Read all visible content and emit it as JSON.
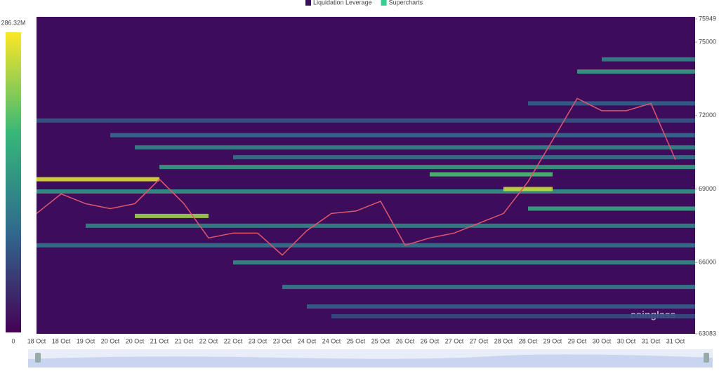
{
  "chart_data": {
    "type": "heatmap",
    "series": [
      {
        "name": "Liquidation Leverage",
        "color": "#3b0f5e"
      },
      {
        "name": "Supercharts",
        "color": "#2fcf91"
      }
    ],
    "colorbar": {
      "min": 0,
      "max": {
        "value": 286320000,
        "label": "286.32M"
      }
    },
    "watermark": "coinglass",
    "categories": [
      "18 Oct",
      "18 Oct",
      "19 Oct",
      "20 Oct",
      "20 Oct",
      "21 Oct",
      "21 Oct",
      "22 Oct",
      "22 Oct",
      "23 Oct",
      "23 Oct",
      "24 Oct",
      "24 Oct",
      "25 Oct",
      "25 Oct",
      "26 Oct",
      "26 Oct",
      "27 Oct",
      "27 Oct",
      "28 Oct",
      "28 Oct",
      "29 Oct",
      "29 Oct",
      "30 Oct",
      "30 Oct",
      "31 Oct",
      "31 Oct"
    ],
    "price": [
      68000,
      68800,
      68400,
      68200,
      68400,
      69400,
      68400,
      67000,
      67200,
      67200,
      66300,
      67300,
      68000,
      68100,
      68500,
      66700,
      67000,
      67200,
      67600,
      68000,
      69300,
      71000,
      72700,
      72200,
      72200,
      72500,
      70200
    ],
    "price_color": "#e0566e",
    "bands": [
      {
        "price": 69400,
        "value": 270000000,
        "from": 0,
        "to": 5
      },
      {
        "price": 68900,
        "value": 150000000,
        "from": 0,
        "to": 27
      },
      {
        "price": 67900,
        "value": 240000000,
        "from": 4,
        "to": 7
      },
      {
        "price": 69900,
        "value": 160000000,
        "from": 5,
        "to": 27
      },
      {
        "price": 69000,
        "value": 260000000,
        "from": 19,
        "to": 21
      },
      {
        "price": 68200,
        "value": 170000000,
        "from": 20,
        "to": 27
      },
      {
        "price": 66000,
        "value": 140000000,
        "from": 8,
        "to": 27
      },
      {
        "price": 65000,
        "value": 120000000,
        "from": 10,
        "to": 27
      },
      {
        "price": 70700,
        "value": 130000000,
        "from": 4,
        "to": 27
      },
      {
        "price": 71200,
        "value": 100000000,
        "from": 3,
        "to": 27
      },
      {
        "price": 72500,
        "value": 90000000,
        "from": 20,
        "to": 27
      },
      {
        "price": 73800,
        "value": 160000000,
        "from": 22,
        "to": 27
      },
      {
        "price": 74300,
        "value": 130000000,
        "from": 23,
        "to": 27
      },
      {
        "price": 66700,
        "value": 110000000,
        "from": 0,
        "to": 27
      },
      {
        "price": 64200,
        "value": 90000000,
        "from": 11,
        "to": 27
      },
      {
        "price": 67500,
        "value": 130000000,
        "from": 2,
        "to": 27
      },
      {
        "price": 63800,
        "value": 70000000,
        "from": 12,
        "to": 27
      },
      {
        "price": 70300,
        "value": 110000000,
        "from": 8,
        "to": 27
      },
      {
        "price": 69600,
        "value": 200000000,
        "from": 16,
        "to": 21
      },
      {
        "price": 71800,
        "value": 80000000,
        "from": 0,
        "to": 27
      }
    ],
    "ylim": [
      63083,
      75949
    ],
    "yticks": [
      63083,
      66000,
      69000,
      72000,
      75000,
      75949
    ]
  }
}
